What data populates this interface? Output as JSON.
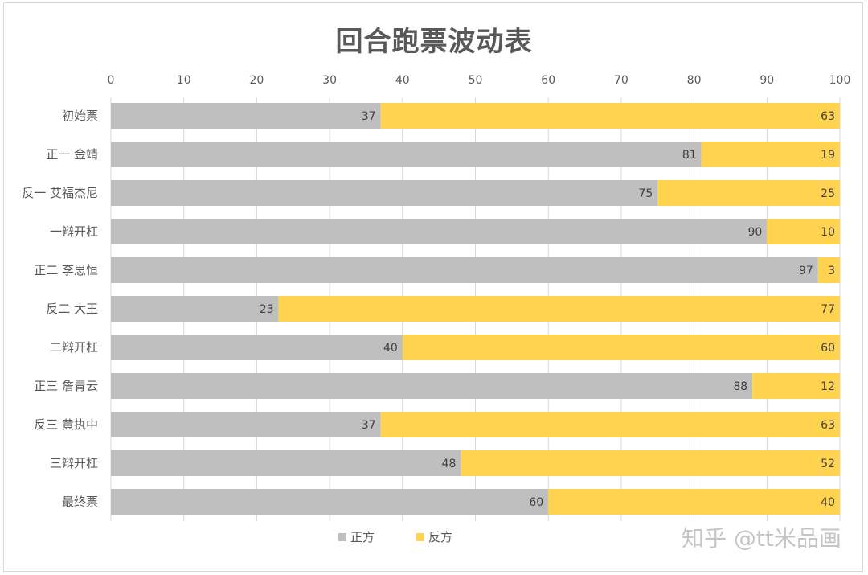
{
  "chart_data": {
    "type": "bar",
    "orientation": "horizontal",
    "stacked": true,
    "title": "回合跑票波动表",
    "categories": [
      "初始票",
      "正一 金靖",
      "反一 艾福杰尼",
      "一辩开杠",
      "正二 李思恒",
      "反二 大王",
      "二辩开杠",
      "正三 詹青云",
      "反三 黄执中",
      "三辩开杠",
      "最终票"
    ],
    "series": [
      {
        "name": "正方",
        "color": "#bfbfbf",
        "values": [
          37,
          81,
          75,
          90,
          97,
          23,
          40,
          88,
          37,
          48,
          60
        ]
      },
      {
        "name": "反方",
        "color": "#ffd34f",
        "values": [
          63,
          19,
          25,
          10,
          3,
          77,
          60,
          12,
          63,
          52,
          40
        ]
      }
    ],
    "xlim": [
      0,
      100
    ],
    "xticks": [
      0,
      10,
      20,
      30,
      40,
      50,
      60,
      70,
      80,
      90,
      100
    ],
    "x_axis_position": "top",
    "grid": true,
    "legend": "bottom",
    "data_labels": true
  },
  "watermark": "知乎 @tt米品画"
}
